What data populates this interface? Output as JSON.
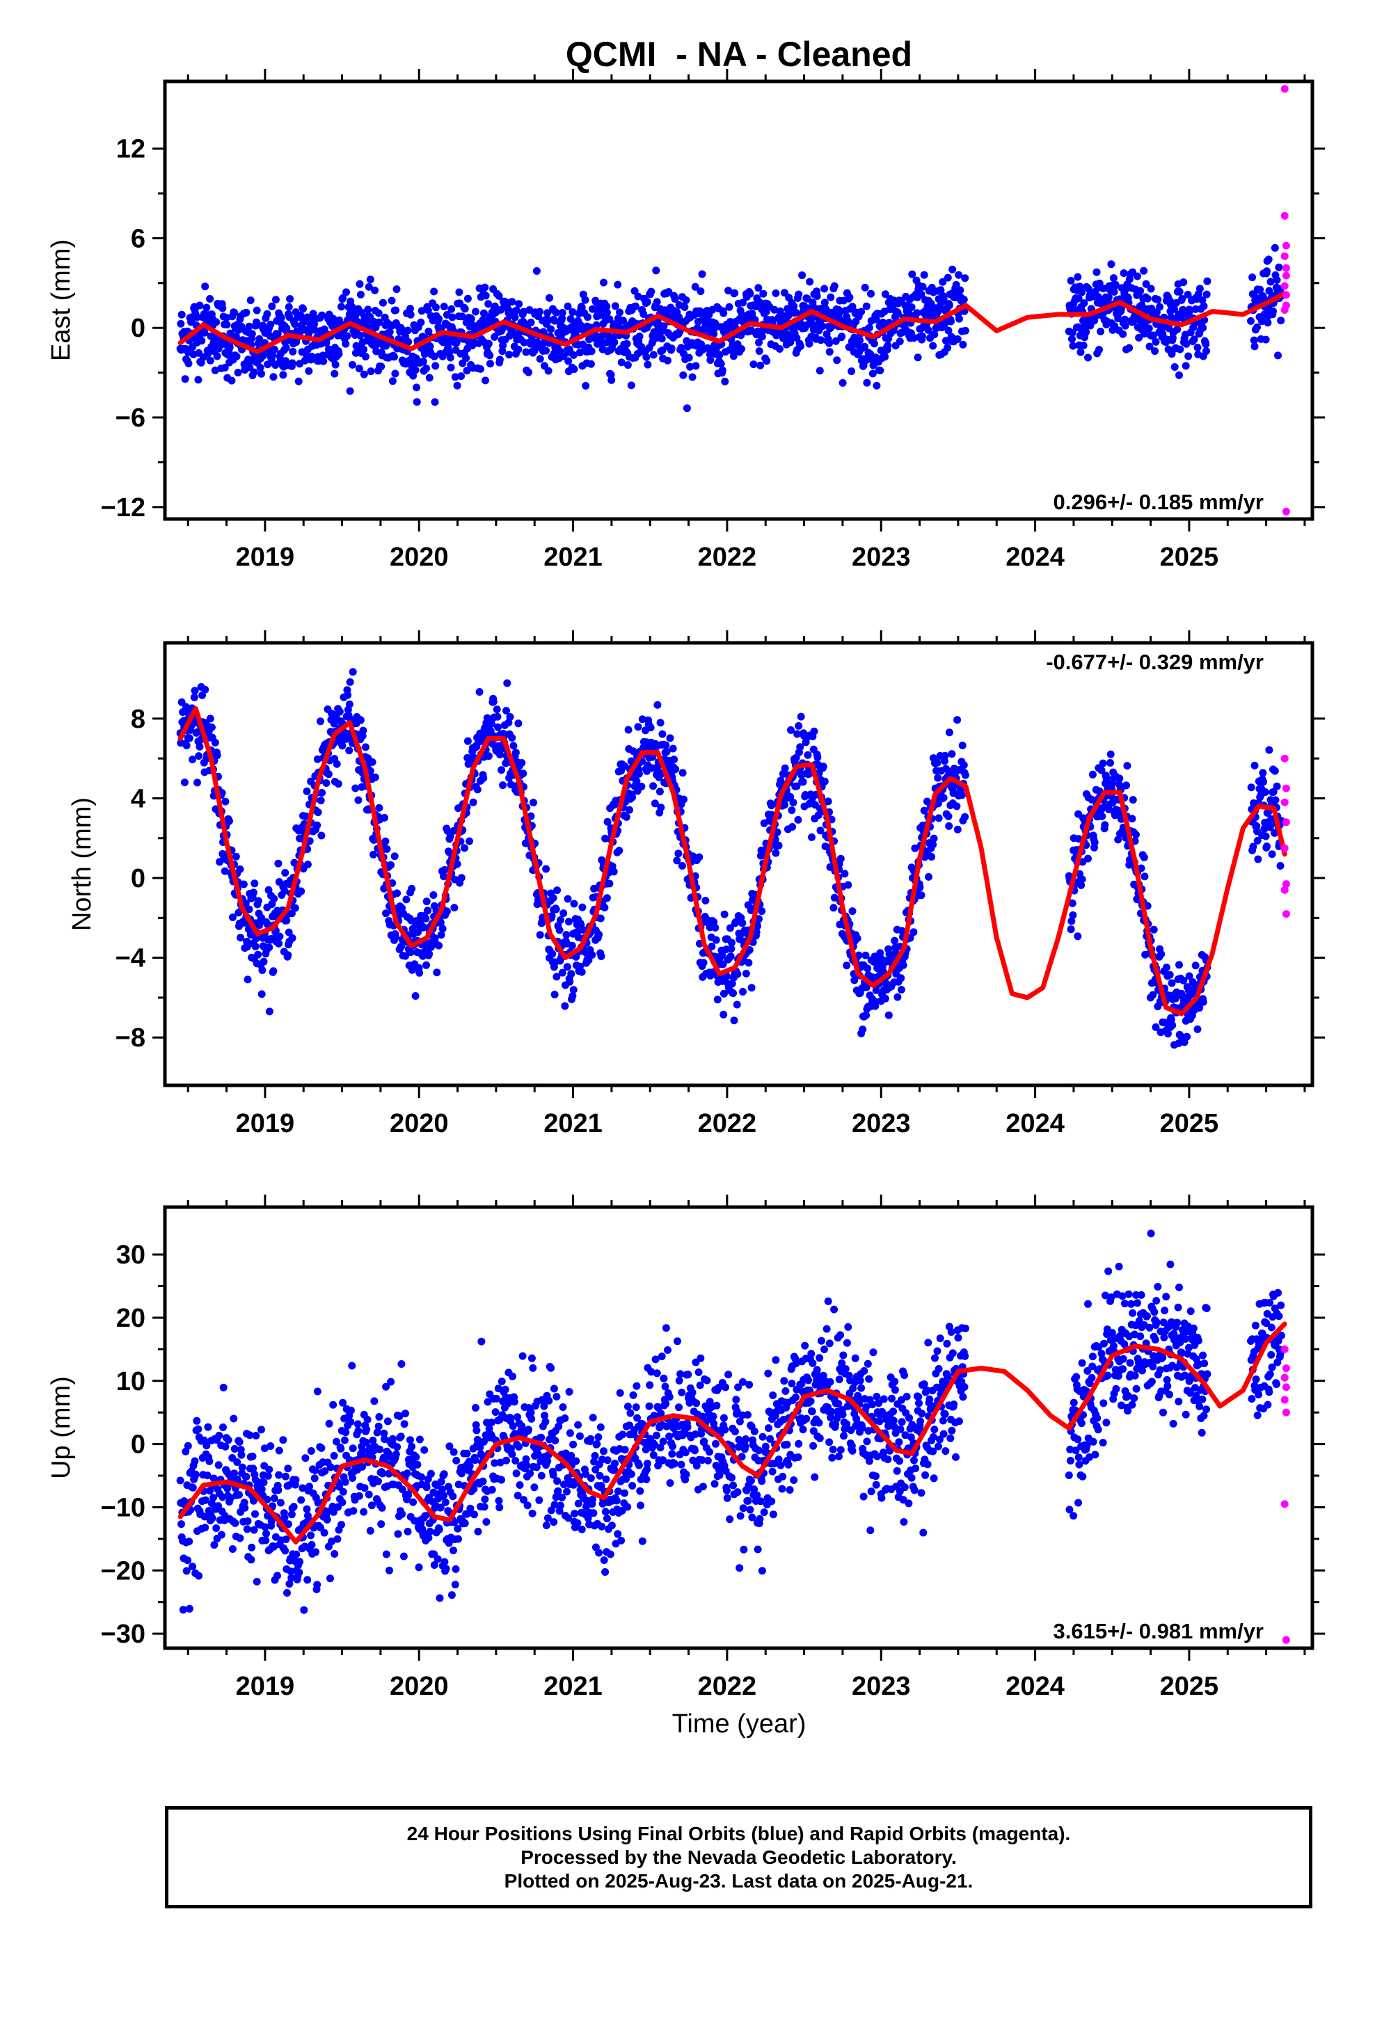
{
  "figure_title": "QCMI  - NA - Cleaned",
  "x_axis_label": "Time (year)",
  "footer": {
    "line1": "24 Hour Positions Using Final Orbits (blue) and Rapid Orbits (magenta).",
    "line2": "Processed by the Nevada Geodetic Laboratory.",
    "line3": "Plotted on 2025-Aug-23. Last data on 2025-Aug-21."
  },
  "colors": {
    "final_orbits": "#0000ff",
    "rapid_orbits": "#ff00ff",
    "model_fit": "#ff0000",
    "frame": "#000000",
    "background": "#ffffff"
  },
  "chart_data": [
    {
      "type": "scatter",
      "component": "east",
      "ylabel": "East (mm)",
      "rate_text": "0.296+/- 0.185 mm/yr",
      "rate_position": "bottom-right",
      "xlim": [
        2018.35,
        2025.8
      ],
      "ylim": [
        -12.8,
        16.5
      ],
      "x_ticks": [
        2019,
        2020,
        2021,
        2022,
        2023,
        2024,
        2025
      ],
      "x_tick_labels": [
        "2019",
        "2020",
        "2021",
        "2022",
        "2023",
        "2024",
        "2025"
      ],
      "y_ticks": [
        -12,
        -6,
        0,
        6,
        12
      ],
      "y_tick_labels": [
        "−12",
        "−6",
        "0",
        "6",
        "12"
      ],
      "grid": false,
      "series": [
        {
          "name": "Final Orbits",
          "segments": [
            [
              2018.45,
              2023.55
            ],
            [
              2024.22,
              2025.12
            ],
            [
              2025.4,
              2025.6
            ]
          ],
          "approx_center": 0.0,
          "approx_scatter_mm": 1.3
        },
        {
          "name": "Rapid Orbits",
          "x": [
            2025.62,
            2025.62,
            2025.63,
            2025.62,
            2025.63,
            2025.63,
            2025.62,
            2025.63,
            2025.63,
            2025.62,
            2025.63
          ],
          "y": [
            16.0,
            7.5,
            5.5,
            4.8,
            4.0,
            3.5,
            2.8,
            2.2,
            1.5,
            1.2,
            -12.3
          ]
        },
        {
          "name": "Model fit",
          "x": [
            2018.45,
            2018.6,
            2018.75,
            2018.95,
            2019.15,
            2019.35,
            2019.55,
            2019.75,
            2019.95,
            2020.15,
            2020.35,
            2020.55,
            2020.75,
            2020.95,
            2021.15,
            2021.35,
            2021.55,
            2021.75,
            2021.95,
            2022.15,
            2022.35,
            2022.55,
            2022.75,
            2022.95,
            2023.15,
            2023.35,
            2023.55,
            2023.75,
            2023.95,
            2024.15,
            2024.35,
            2024.55,
            2024.75,
            2024.95,
            2025.15,
            2025.35,
            2025.55,
            2025.62
          ],
          "y": [
            -1.0,
            0.2,
            -0.7,
            -1.6,
            -0.5,
            -0.8,
            0.3,
            -0.6,
            -1.4,
            -0.3,
            -0.6,
            0.4,
            -0.4,
            -1.1,
            -0.1,
            -0.3,
            0.8,
            -0.2,
            -0.9,
            0.3,
            0.0,
            1.1,
            0.1,
            -0.6,
            0.6,
            0.4,
            1.5,
            -0.2,
            0.7,
            0.9,
            0.9,
            1.7,
            0.6,
            0.2,
            1.1,
            0.9,
            1.9,
            2.3
          ]
        }
      ]
    },
    {
      "type": "scatter",
      "component": "north",
      "ylabel": "North (mm)",
      "rate_text": "-0.677+/- 0.329 mm/yr",
      "rate_position": "top-right",
      "xlim": [
        2018.35,
        2025.8
      ],
      "ylim": [
        -10.4,
        11.8
      ],
      "x_ticks": [
        2019,
        2020,
        2021,
        2022,
        2023,
        2024,
        2025
      ],
      "x_tick_labels": [
        "2019",
        "2020",
        "2021",
        "2022",
        "2023",
        "2024",
        "2025"
      ],
      "y_ticks": [
        -8,
        -4,
        0,
        4,
        8
      ],
      "y_tick_labels": [
        "−8",
        "−4",
        "0",
        "4",
        "8"
      ],
      "grid": false,
      "series": [
        {
          "name": "Final Orbits",
          "segments": [
            [
              2018.45,
              2023.55
            ],
            [
              2024.22,
              2025.12
            ],
            [
              2025.4,
              2025.6
            ]
          ],
          "approx_scatter_mm": 1.1
        },
        {
          "name": "Rapid Orbits",
          "x": [
            2025.62,
            2025.63,
            2025.62,
            2025.63,
            2025.62,
            2025.63,
            2025.62,
            2025.63
          ],
          "y": [
            6.0,
            4.5,
            3.8,
            2.8,
            1.5,
            -0.3,
            -0.6,
            -1.8
          ]
        },
        {
          "name": "Model fit",
          "x": [
            2018.45,
            2018.55,
            2018.65,
            2018.75,
            2018.85,
            2018.95,
            2019.05,
            2019.15,
            2019.25,
            2019.35,
            2019.45,
            2019.55,
            2019.65,
            2019.75,
            2019.85,
            2019.95,
            2020.05,
            2020.15,
            2020.25,
            2020.35,
            2020.45,
            2020.55,
            2020.65,
            2020.75,
            2020.85,
            2020.95,
            2021.05,
            2021.15,
            2021.25,
            2021.35,
            2021.45,
            2021.55,
            2021.65,
            2021.75,
            2021.85,
            2021.95,
            2022.05,
            2022.15,
            2022.25,
            2022.35,
            2022.45,
            2022.55,
            2022.65,
            2022.75,
            2022.85,
            2022.95,
            2023.05,
            2023.15,
            2023.25,
            2023.35,
            2023.45,
            2023.55,
            2023.65,
            2023.75,
            2023.85,
            2023.95,
            2024.05,
            2024.15,
            2024.25,
            2024.35,
            2024.45,
            2024.55,
            2024.65,
            2024.75,
            2024.85,
            2024.95,
            2025.05,
            2025.15,
            2025.25,
            2025.35,
            2025.45,
            2025.55,
            2025.62
          ],
          "y": [
            7.0,
            8.5,
            6.0,
            1.8,
            -1.5,
            -2.8,
            -2.5,
            -1.5,
            1.5,
            5.0,
            7.2,
            7.8,
            5.5,
            1.5,
            -2.2,
            -3.4,
            -3.0,
            -1.5,
            2.0,
            5.5,
            7.0,
            7.0,
            4.8,
            1.0,
            -2.8,
            -4.0,
            -3.5,
            -1.8,
            1.8,
            5.0,
            6.3,
            6.3,
            4.3,
            0.8,
            -3.3,
            -4.8,
            -4.5,
            -3.0,
            0.8,
            4.2,
            5.6,
            5.7,
            3.0,
            -1.5,
            -4.8,
            -5.4,
            -4.8,
            -3.5,
            1.0,
            4.2,
            5.0,
            4.6,
            1.5,
            -3.0,
            -5.8,
            -6.0,
            -5.5,
            -3.0,
            0.0,
            3.0,
            4.3,
            4.3,
            0.8,
            -3.5,
            -6.5,
            -6.8,
            -6.0,
            -3.8,
            -0.5,
            2.5,
            3.6,
            3.5,
            1.2
          ]
        }
      ]
    },
    {
      "type": "scatter",
      "component": "up",
      "ylabel": "Up (mm)",
      "rate_text": "3.615+/- 0.981 mm/yr",
      "rate_position": "bottom-right",
      "xlim": [
        2018.35,
        2025.8
      ],
      "ylim": [
        -32.3,
        37.5
      ],
      "x_ticks": [
        2019,
        2020,
        2021,
        2022,
        2023,
        2024,
        2025
      ],
      "x_tick_labels": [
        "2019",
        "2020",
        "2021",
        "2022",
        "2023",
        "2024",
        "2025"
      ],
      "y_ticks": [
        -30,
        -20,
        -10,
        0,
        10,
        20,
        30
      ],
      "y_tick_labels": [
        "−30",
        "−20",
        "−10",
        "0",
        "10",
        "20",
        "30"
      ],
      "grid": false,
      "series": [
        {
          "name": "Final Orbits",
          "segments": [
            [
              2018.45,
              2023.55
            ],
            [
              2024.22,
              2025.12
            ],
            [
              2025.4,
              2025.6
            ]
          ],
          "approx_scatter_mm": 5.5
        },
        {
          "name": "Rapid Orbits",
          "x": [
            2025.62,
            2025.63,
            2025.62,
            2025.63,
            2025.62,
            2025.63,
            2025.62,
            2025.63
          ],
          "y": [
            15.0,
            12.0,
            10.5,
            9.0,
            7.0,
            5.0,
            -9.5,
            -31.0
          ]
        },
        {
          "name": "Model fit",
          "x": [
            2018.45,
            2018.6,
            2018.75,
            2018.9,
            2019.05,
            2019.2,
            2019.35,
            2019.5,
            2019.65,
            2019.8,
            2019.95,
            2020.1,
            2020.2,
            2020.35,
            2020.5,
            2020.65,
            2020.8,
            2020.95,
            2021.1,
            2021.2,
            2021.35,
            2021.5,
            2021.65,
            2021.8,
            2021.95,
            2022.1,
            2022.2,
            2022.35,
            2022.5,
            2022.65,
            2022.8,
            2022.95,
            2023.1,
            2023.2,
            2023.35,
            2023.5,
            2023.65,
            2023.8,
            2023.95,
            2024.1,
            2024.22,
            2024.35,
            2024.5,
            2024.65,
            2024.8,
            2024.95,
            2025.1,
            2025.2,
            2025.35,
            2025.5,
            2025.62
          ],
          "y": [
            -11.5,
            -6.5,
            -6.0,
            -7.0,
            -11.0,
            -15.5,
            -11.0,
            -3.5,
            -2.5,
            -3.5,
            -7.0,
            -11.5,
            -12.0,
            -5.5,
            0.0,
            1.0,
            0.0,
            -3.0,
            -7.5,
            -8.5,
            -2.5,
            3.5,
            4.5,
            4.0,
            1.0,
            -3.5,
            -5.0,
            1.0,
            7.5,
            8.5,
            7.0,
            3.0,
            -1.0,
            -1.5,
            5.0,
            11.5,
            12.0,
            11.5,
            8.5,
            4.5,
            2.5,
            7.5,
            14.0,
            15.5,
            15.0,
            13.5,
            9.5,
            6.0,
            8.5,
            16.0,
            19.0
          ]
        }
      ]
    }
  ]
}
